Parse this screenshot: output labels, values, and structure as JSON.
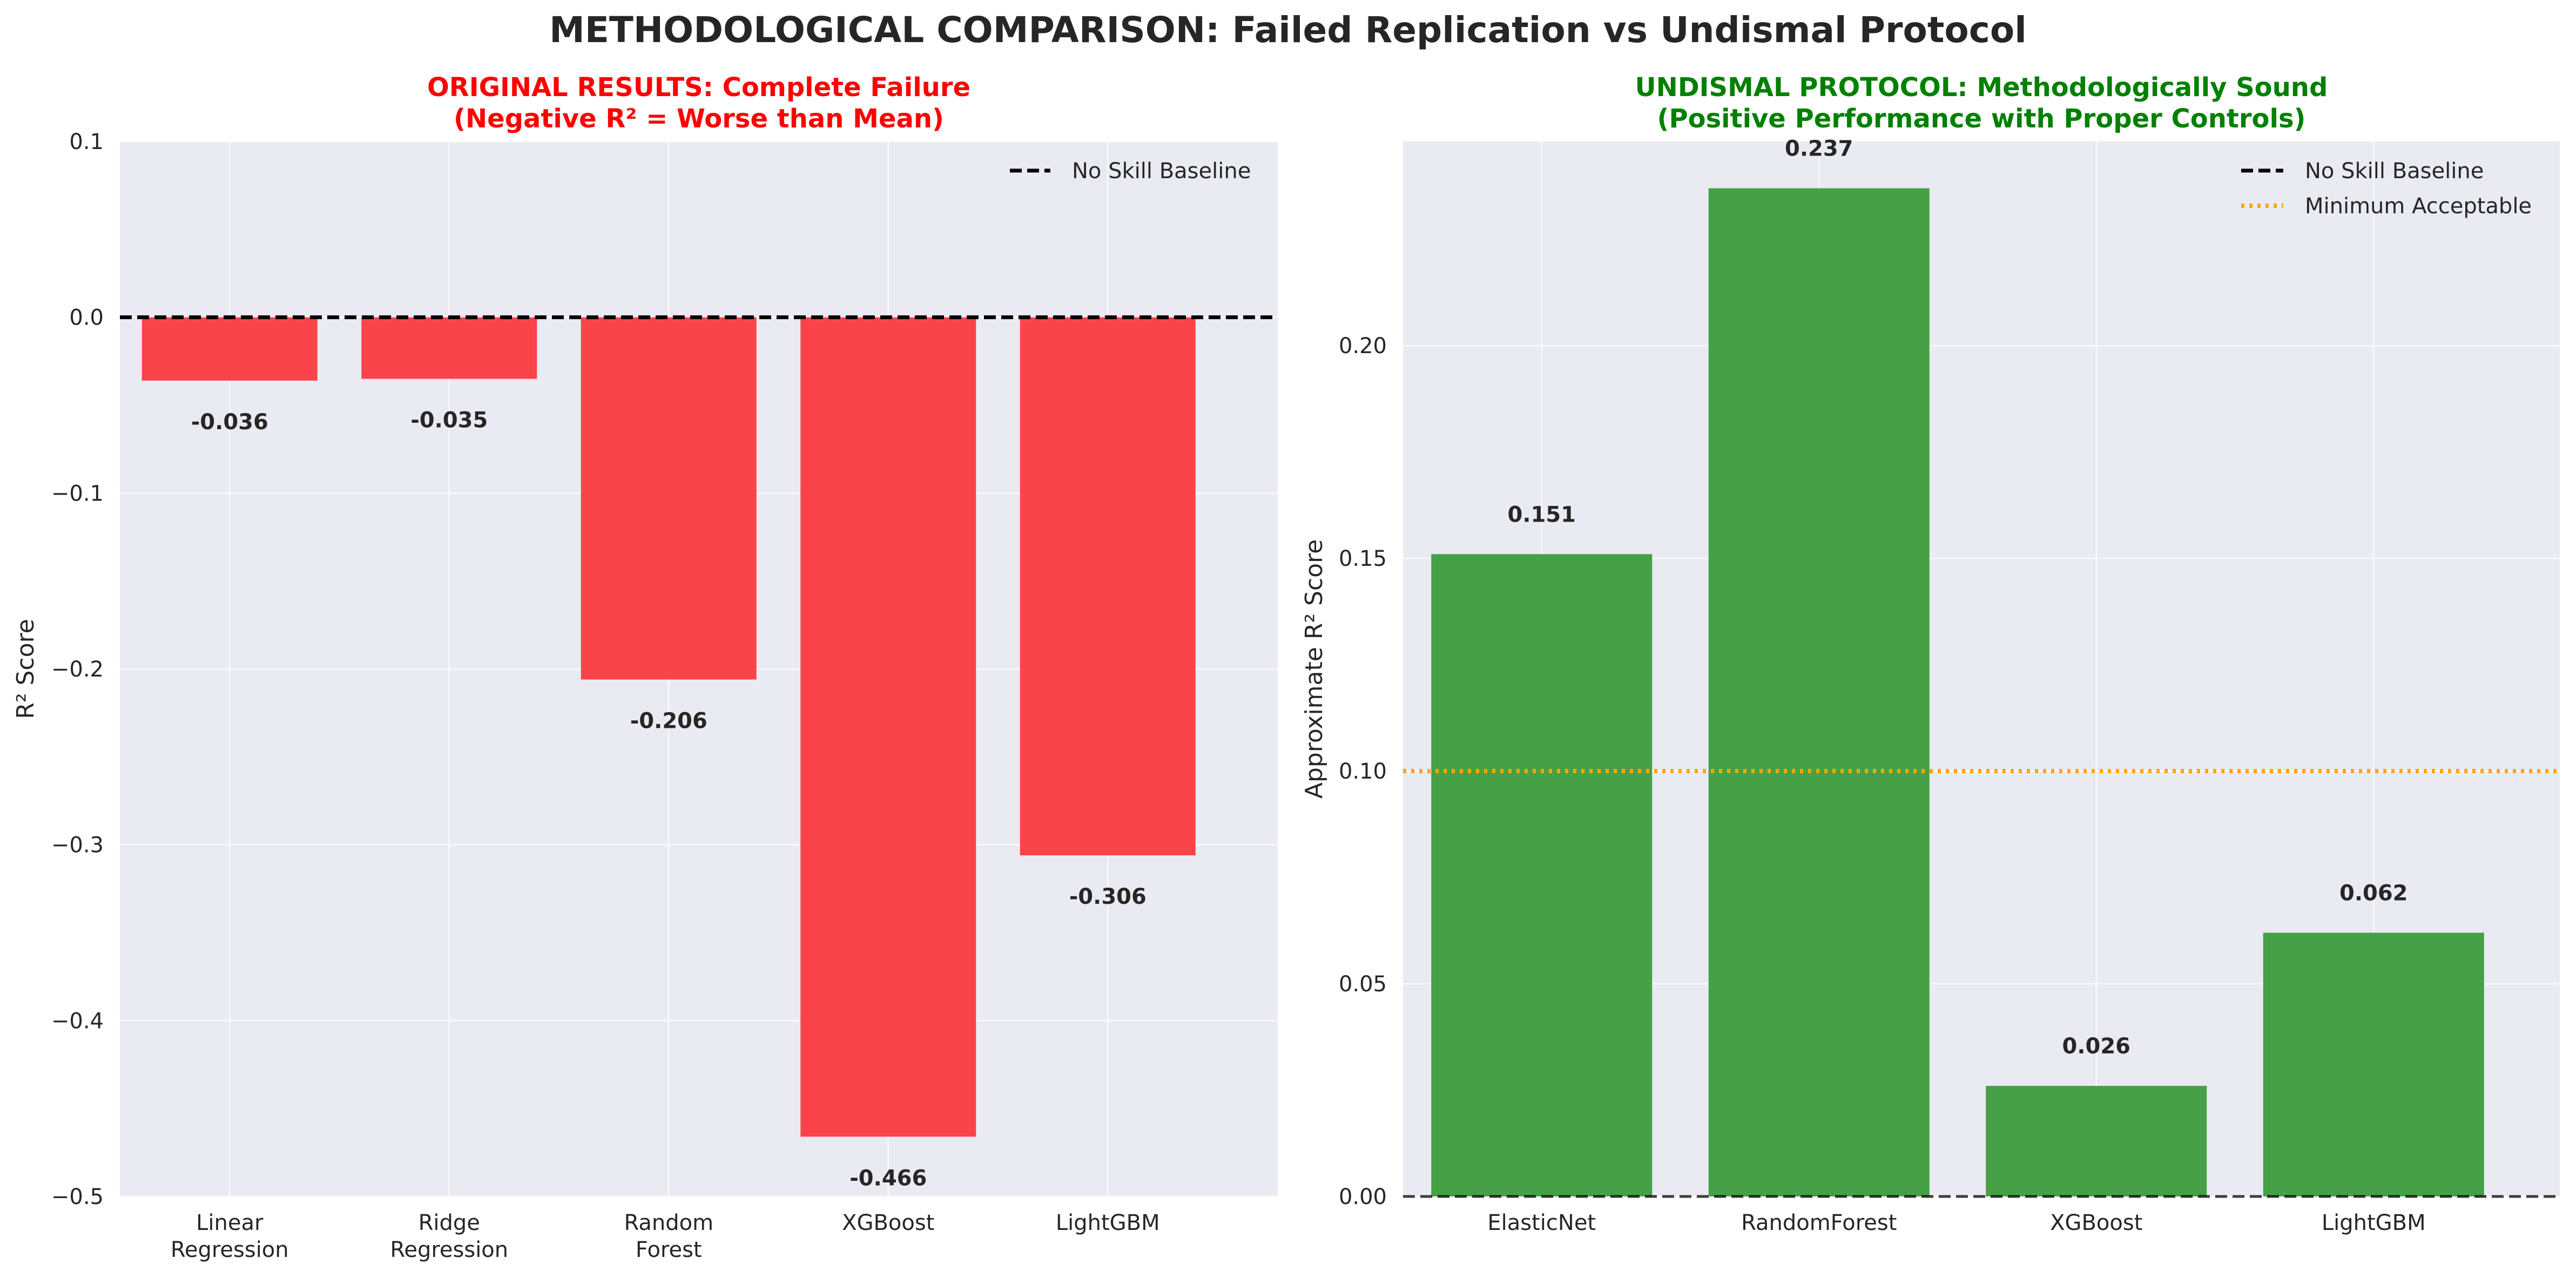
{
  "suptitle": "METHODOLOGICAL COMPARISON: Failed Replication vs Undismal Protocol",
  "chart_data": [
    {
      "type": "bar",
      "title_line1": "ORIGINAL RESULTS: Complete Failure",
      "title_line2": "(Negative R² = Worse than Mean)",
      "title_color": "#ff0000",
      "categories": [
        [
          "Linear",
          "Regression"
        ],
        [
          "Ridge",
          "Regression"
        ],
        [
          "Random",
          "Forest"
        ],
        [
          "XGBoost"
        ],
        [
          "LightGBM"
        ]
      ],
      "values": [
        -0.036,
        -0.035,
        -0.206,
        -0.466,
        -0.306
      ],
      "value_labels": [
        "-0.036",
        "-0.035",
        "-0.206",
        "-0.466",
        "-0.306"
      ],
      "bar_color": "#f94449",
      "xlabel": "",
      "ylabel": "R² Score",
      "ylim": [
        -0.5,
        0.1
      ],
      "yticks": [
        0.1,
        0.0,
        -0.1,
        -0.2,
        -0.3,
        -0.4,
        -0.5
      ],
      "ytick_labels": [
        "0.1",
        "0.0",
        "−0.1",
        "−0.2",
        "−0.3",
        "−0.4",
        "−0.5"
      ],
      "reference_lines": [
        {
          "name": "No Skill Baseline",
          "y": 0.0,
          "style": "dashed",
          "color": "#000000"
        }
      ],
      "legend_position": "upper-right",
      "grid": true
    },
    {
      "type": "bar",
      "title_line1": "UNDISMAL PROTOCOL: Methodologically Sound",
      "title_line2": "(Positive Performance with Proper Controls)",
      "title_color": "#008000",
      "categories": [
        [
          "ElasticNet"
        ],
        [
          "RandomForest"
        ],
        [
          "XGBoost"
        ],
        [
          "LightGBM"
        ]
      ],
      "values": [
        0.151,
        0.237,
        0.026,
        0.062
      ],
      "value_labels": [
        "0.151",
        "0.237",
        "0.026",
        "0.062"
      ],
      "bar_color": "#46a046",
      "xlabel": "",
      "ylabel": "Approximate R² Score",
      "ylim": [
        0.0,
        0.248
      ],
      "yticks": [
        0.0,
        0.05,
        0.1,
        0.15,
        0.2
      ],
      "ytick_labels": [
        "0.00",
        "0.05",
        "0.10",
        "0.15",
        "0.20"
      ],
      "reference_lines": [
        {
          "name": "No Skill Baseline",
          "y": 0.0,
          "style": "dashed",
          "color": "#000000"
        },
        {
          "name": "Minimum Acceptable",
          "y": 0.1,
          "style": "dotted",
          "color": "#ffa500"
        }
      ],
      "legend_position": "upper-right",
      "grid": true
    }
  ]
}
